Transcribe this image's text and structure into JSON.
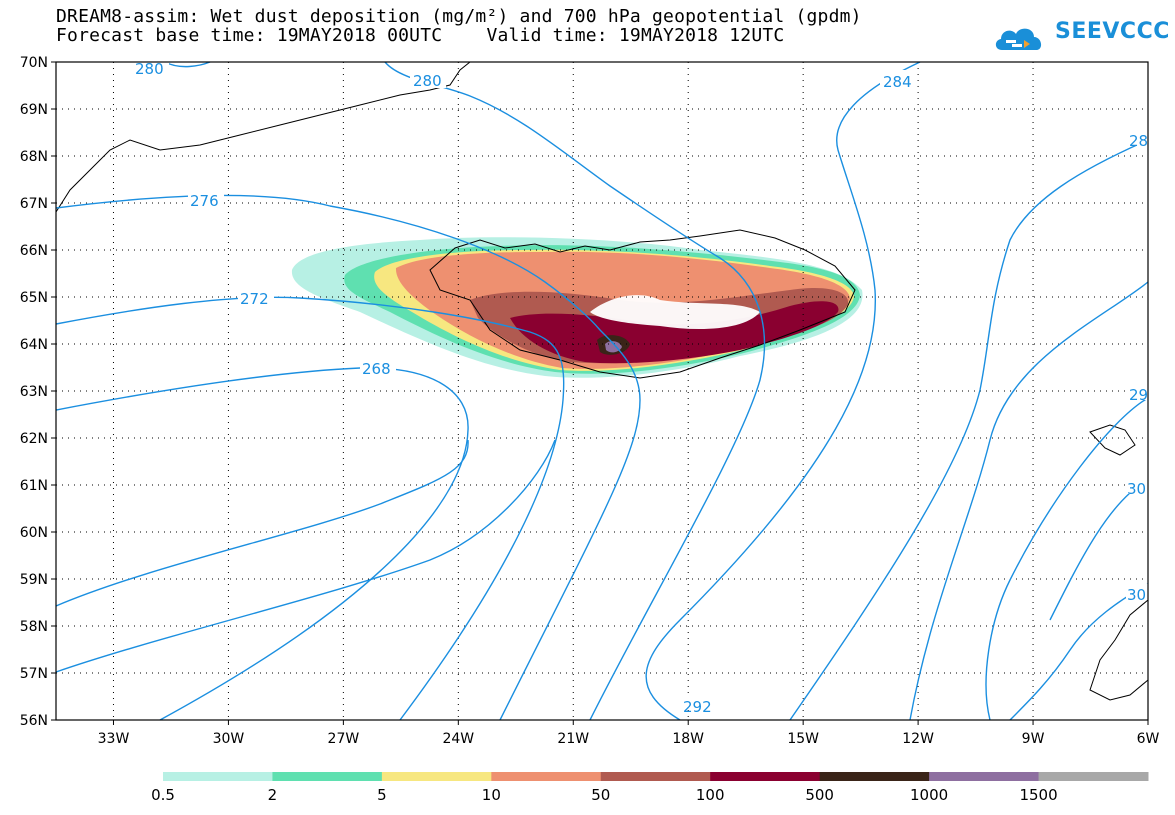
{
  "title": {
    "line1": "DREAM8-assim: Wet dust deposition (mg/m²) and 700 hPa geopotential (gpdm)",
    "line2": "Forecast base time: 19MAY2018 00UTC    Valid time: 19MAY2018 12UTC"
  },
  "logo": {
    "text": "SEEVCCC",
    "color": "#1a8fd8"
  },
  "axes": {
    "lat_labels": [
      "70N",
      "69N",
      "68N",
      "67N",
      "66N",
      "65N",
      "64N",
      "63N",
      "62N",
      "61N",
      "60N",
      "59N",
      "58N",
      "57N",
      "56N"
    ],
    "lon_labels": [
      "33W",
      "30W",
      "27W",
      "24W",
      "21W",
      "18W",
      "15W",
      "12W",
      "9W",
      "6W"
    ]
  },
  "contour_labels": [
    "280",
    "280",
    "284",
    "28",
    "276",
    "272",
    "268",
    "292",
    "29",
    "30",
    "30"
  ],
  "legend": {
    "colors": [
      "#b7f0e4",
      "#5fe0b0",
      "#f7e780",
      "#ee9070",
      "#b05a50",
      "#8a0030",
      "#3a2418",
      "#8e6fa0",
      "#a8a8a8"
    ],
    "labels": [
      "0.5",
      "2",
      "5",
      "10",
      "50",
      "100",
      "500",
      "1000",
      "1500"
    ]
  },
  "colors": {
    "contour": "#1b8fe0",
    "coast": "#000000",
    "grid": "#000000"
  }
}
